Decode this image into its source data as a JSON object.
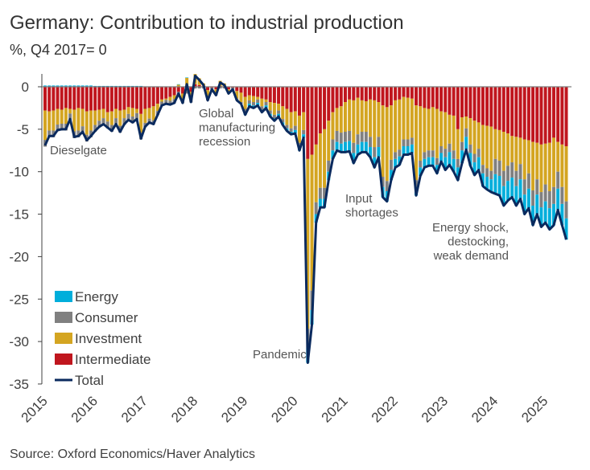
{
  "chart_data": {
    "type": "bar",
    "stacked": true,
    "title": "Germany: Contribution to industrial production",
    "subtitle": "%, Q4 2017= 0",
    "source": "Source: Oxford Economics/Haver Analytics",
    "period": {
      "start": "2015-01",
      "end": "2025-06",
      "frequency": "monthly"
    },
    "x_tick_labels": [
      "2015",
      "2016",
      "2017",
      "2018",
      "2019",
      "2020",
      "2021",
      "2022",
      "2023",
      "2024",
      "2025"
    ],
    "y_ticks": [
      0,
      -5,
      -10,
      -15,
      -20,
      -25,
      -30,
      -35
    ],
    "ylim": [
      -35,
      2
    ],
    "grid": false,
    "legend_placement": "bottom-left",
    "annotations": [
      {
        "lines": [
          "Dieselgate"
        ]
      },
      {
        "lines": [
          "Global",
          "manufacturing",
          "recession"
        ]
      },
      {
        "lines": [
          "Pandemic"
        ]
      },
      {
        "lines": [
          "Input",
          "shortages"
        ]
      },
      {
        "lines": [
          "Energy shock,",
          "destocking,",
          "weak demand"
        ]
      }
    ],
    "series": [
      {
        "name": "Energy",
        "color": "#00AEDB",
        "kind": "bar",
        "values": [
          0.15,
          0.15,
          0.15,
          0.15,
          0.15,
          0.15,
          0.15,
          0.15,
          0.15,
          0.15,
          0.15,
          0.15,
          0.1,
          0.1,
          0.1,
          0.1,
          0.1,
          0.1,
          0.1,
          0.1,
          0.1,
          0.1,
          0.1,
          0.1,
          0.05,
          0.05,
          0.05,
          0.05,
          0.05,
          0.05,
          0.05,
          0.05,
          0.05,
          0.05,
          0.05,
          0.05,
          0,
          0,
          0,
          0,
          0,
          0,
          0,
          0,
          0,
          0,
          0,
          0,
          -0.3,
          -0.3,
          -0.3,
          -0.3,
          -0.3,
          -0.3,
          -0.3,
          -0.3,
          -0.3,
          -0.3,
          -0.3,
          -0.3,
          -0.4,
          -0.4,
          -0.4,
          -1.8,
          -1.7,
          -1.0,
          -1.0,
          -1.0,
          -1.0,
          -1.0,
          -1.0,
          -1.0,
          -1.2,
          -1.2,
          -1.2,
          -1.2,
          -1.2,
          -1.2,
          -1.2,
          -1.2,
          -1.2,
          -1.2,
          -1.2,
          -1.2,
          -1.0,
          -1.0,
          -1.0,
          -1.0,
          -1.0,
          -1.0,
          -1.0,
          -1.0,
          -1.0,
          -1.0,
          -1.0,
          -1.0,
          -1.5,
          -1.5,
          -1.5,
          -1.5,
          -1.5,
          -1.5,
          -1.5,
          -1.5,
          -1.5,
          -1.5,
          -1.5,
          -1.5,
          -2.3,
          -2.3,
          -2.3,
          -2.3,
          -2.3,
          -2.3,
          -2.3,
          -2.3,
          -2.3,
          -2.3,
          -2.3,
          -2.3,
          -2.5,
          -2.5,
          -2.5,
          -2.5,
          -2.5,
          -2.5
        ]
      },
      {
        "name": "Consumer",
        "color": "#808080",
        "kind": "bar",
        "values": [
          -0.8,
          -0.8,
          -0.8,
          -0.8,
          -0.8,
          -0.8,
          -0.8,
          -0.8,
          -0.8,
          -0.8,
          -0.8,
          -0.8,
          -0.8,
          -0.8,
          -0.8,
          -0.8,
          -0.8,
          -0.8,
          -0.8,
          -0.8,
          -0.8,
          -0.8,
          -0.8,
          -0.8,
          -0.5,
          -0.5,
          -0.5,
          -0.5,
          -0.5,
          -0.5,
          -0.5,
          -0.5,
          -0.5,
          -0.5,
          -0.5,
          -0.5,
          -0.2,
          -0.2,
          -0.2,
          -0.2,
          -0.2,
          -0.2,
          -0.2,
          -0.2,
          -0.2,
          -0.2,
          -0.2,
          -0.2,
          -0.4,
          -0.4,
          -0.4,
          -0.4,
          -0.4,
          -0.4,
          -0.4,
          -0.4,
          -0.4,
          -0.4,
          -0.4,
          -0.4,
          -0.5,
          -0.5,
          -0.5,
          -2.2,
          -2.3,
          -1.4,
          -1.3,
          -1.3,
          -1.3,
          -1.3,
          -1.3,
          -1.3,
          -1.2,
          -1.2,
          -1.2,
          -1.2,
          -1.2,
          -1.2,
          -1.2,
          -1.2,
          -1.2,
          -1.2,
          -1.2,
          -1.2,
          -0.8,
          -0.8,
          -0.8,
          -0.8,
          -0.8,
          -0.8,
          -0.8,
          -0.8,
          -0.8,
          -0.8,
          -0.8,
          -0.8,
          -1.0,
          -1.0,
          -1.0,
          -1.0,
          -1.0,
          -1.0,
          -1.0,
          -1.0,
          -1.0,
          -1.0,
          -1.0,
          -1.0,
          -1.8,
          -1.8,
          -1.8,
          -1.8,
          -1.8,
          -1.8,
          -1.8,
          -1.8,
          -1.8,
          -1.8,
          -1.8,
          -1.8,
          -2.0,
          -2.0,
          -2.0,
          -2.0,
          -2.0,
          -2.0
        ]
      },
      {
        "name": "Investment",
        "color": "#D4A521",
        "kind": "bar",
        "values": [
          -3.45,
          -2.25,
          -2.35,
          -1.85,
          -1.65,
          -1.85,
          -0.55,
          -2.55,
          -2.65,
          -2.05,
          -2.75,
          -2.35,
          -1.7,
          -1.3,
          -1.1,
          -1.1,
          -1.6,
          -1.1,
          -1.8,
          -1.0,
          -0.8,
          -1.0,
          -0.5,
          -2.2,
          -1.65,
          -1.25,
          -1.65,
          -0.85,
          -0.25,
          -0.15,
          -0.45,
          -0.45,
          0.25,
          -0.65,
          1.05,
          -0.75,
          1.2,
          0.8,
          0.3,
          -1.0,
          0.0,
          -0.5,
          0.6,
          0.4,
          -0.3,
          0.0,
          -0.9,
          -1.1,
          -1.4,
          -0.6,
          -0.7,
          -0.3,
          -0.9,
          -0.3,
          -1.0,
          -1.4,
          -0.8,
          -1.5,
          -1.9,
          -1.9,
          -1.7,
          -3.2,
          -2.1,
          -20.0,
          -16.0,
          -6.8,
          -6.4,
          -6.9,
          -4.7,
          -3.2,
          -2.7,
          -3.1,
          -3.5,
          -3.7,
          -5.0,
          -4.3,
          -3.7,
          -3.6,
          -4.4,
          -5.5,
          -4.1,
          -8.4,
          -8.7,
          -6.4,
          -6.1,
          -5.9,
          -5.0,
          -4.9,
          -4.6,
          -8.8,
          -6.4,
          -5.2,
          -4.9,
          -5.1,
          -5.8,
          -4.1,
          -4.3,
          -3.4,
          -4.1,
          -3.5,
          -2.9,
          -1.4,
          -3.1,
          -3.9,
          -3.1,
          -4.7,
          -5.0,
          -5.2,
          -3.5,
          -3.6,
          -4.6,
          -3.8,
          -3.1,
          -4.0,
          -3.1,
          -4.7,
          -3.9,
          -5.7,
          -4.3,
          -5.6,
          -4.8,
          -5.7,
          -5.8,
          -3.5,
          -5.0,
          -6.5
        ]
      },
      {
        "name": "Intermediate",
        "color": "#C0161E",
        "kind": "bar",
        "values": [
          -2.8,
          -2.9,
          -2.8,
          -2.6,
          -2.7,
          -2.5,
          -2.6,
          -2.7,
          -2.5,
          -2.6,
          -2.9,
          -2.8,
          -2.8,
          -2.7,
          -2.6,
          -3.0,
          -2.9,
          -2.6,
          -2.8,
          -2.7,
          -2.4,
          -2.5,
          -2.6,
          -3.2,
          -2.6,
          -2.5,
          -2.3,
          -2.0,
          -1.5,
          -1.4,
          -1.2,
          -1.0,
          -0.6,
          -0.8,
          -0.3,
          -0.6,
          0.3,
          0.2,
          0.1,
          -0.4,
          -0.1,
          -0.3,
          0.1,
          0.0,
          -0.3,
          -0.1,
          -0.5,
          -0.7,
          -1.2,
          -1.0,
          -1.1,
          -1.2,
          -1.4,
          -1.5,
          -1.8,
          -1.9,
          -2.0,
          -2.3,
          -2.6,
          -3.0,
          -2.9,
          -3.4,
          -3.0,
          -8.5,
          -8.0,
          -6.8,
          -5.5,
          -5.0,
          -4.0,
          -3.0,
          -2.5,
          -2.3,
          -1.8,
          -1.5,
          -1.6,
          -1.3,
          -1.6,
          -1.7,
          -1.5,
          -1.6,
          -1.8,
          -2.2,
          -2.4,
          -2.2,
          -1.6,
          -1.5,
          -1.2,
          -1.3,
          -1.4,
          -2.2,
          -2.3,
          -2.5,
          -2.6,
          -2.4,
          -2.6,
          -2.9,
          -3.0,
          -3.3,
          -3.4,
          -5.0,
          -3.6,
          -3.5,
          -3.7,
          -4.0,
          -4.2,
          -4.5,
          -4.6,
          -4.7,
          -5.0,
          -5.1,
          -5.3,
          -5.5,
          -5.8,
          -5.9,
          -6.0,
          -6.2,
          -6.3,
          -6.5,
          -6.6,
          -6.8,
          -6.7,
          -6.6,
          -6.0,
          -6.5,
          -6.8,
          -7.0
        ]
      },
      {
        "name": "Total",
        "color": "#0A2A5E",
        "kind": "line",
        "values": [
          -6.9,
          -5.8,
          -5.8,
          -5.1,
          -5.0,
          -5.0,
          -3.8,
          -5.9,
          -5.8,
          -5.3,
          -6.3,
          -5.8,
          -5.2,
          -4.7,
          -4.4,
          -4.8,
          -5.2,
          -4.4,
          -5.3,
          -4.4,
          -3.9,
          -4.2,
          -3.8,
          -6.1,
          -4.7,
          -4.2,
          -4.4,
          -3.3,
          -2.2,
          -2.0,
          -2.1,
          -1.9,
          -0.8,
          -1.9,
          0.3,
          -1.8,
          1.3,
          0.8,
          0.2,
          -1.6,
          -0.3,
          -1.0,
          0.5,
          0.2,
          -0.8,
          -0.3,
          -1.6,
          -2.0,
          -3.3,
          -2.3,
          -2.5,
          -2.2,
          -3.0,
          -2.5,
          -3.5,
          -4.0,
          -3.5,
          -4.5,
          -5.2,
          -5.6,
          -5.5,
          -7.5,
          -6.0,
          -32.5,
          -28.0,
          -16.0,
          -14.2,
          -14.2,
          -11.0,
          -8.5,
          -7.5,
          -7.7,
          -7.7,
          -7.6,
          -9.0,
          -8.0,
          -7.7,
          -7.7,
          -8.3,
          -9.5,
          -8.3,
          -13.0,
          -13.5,
          -11.0,
          -9.5,
          -9.2,
          -8.0,
          -8.0,
          -7.8,
          -12.8,
          -10.5,
          -9.5,
          -9.3,
          -9.3,
          -10.2,
          -8.8,
          -9.8,
          -9.2,
          -10.0,
          -11.0,
          -9.0,
          -7.4,
          -9.3,
          -10.4,
          -9.8,
          -11.7,
          -12.1,
          -12.4,
          -12.6,
          -12.8,
          -14.0,
          -13.4,
          -13.0,
          -14.0,
          -13.2,
          -15.0,
          -14.3,
          -16.3,
          -15.0,
          -16.5,
          -16.0,
          -16.8,
          -16.3,
          -14.5,
          -16.3,
          -18.0
        ]
      }
    ]
  }
}
